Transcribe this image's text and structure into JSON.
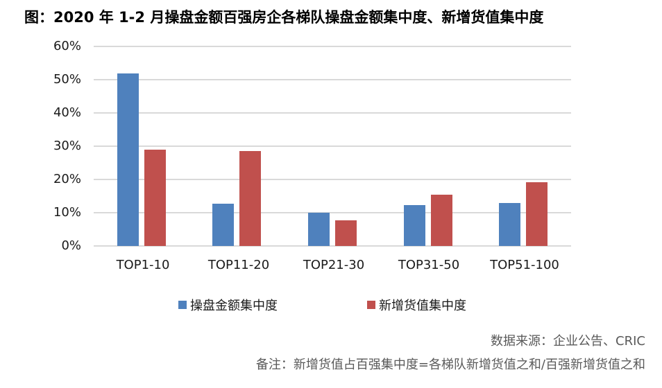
{
  "title": "图：2020 年 1-2 月操盘金额百强房企各梯队操盘金额集中度、新增货值集中度",
  "colors": {
    "series1": "#4f81bd",
    "series2": "#c0504d",
    "grid": "#d9d9d9"
  },
  "chart_data": {
    "type": "bar",
    "title": "图：2020 年 1-2 月操盘金额百强房企各梯队操盘金额集中度、新增货值集中度",
    "categories": [
      "TOP1-10",
      "TOP11-20",
      "TOP21-30",
      "TOP31-50",
      "TOP51-100"
    ],
    "series": [
      {
        "name": "操盘金额集中度",
        "color": "#4f81bd",
        "values": [
          51.9,
          12.7,
          10.0,
          12.3,
          12.9
        ]
      },
      {
        "name": "新增货值集中度",
        "color": "#c0504d",
        "values": [
          29.0,
          28.5,
          7.7,
          15.4,
          19.2
        ]
      }
    ],
    "xlabel": "",
    "ylabel": "",
    "ylim": [
      0,
      60
    ],
    "yticks": [
      "0%",
      "10%",
      "20%",
      "30%",
      "40%",
      "50%",
      "60%"
    ],
    "grid": true,
    "legend_position": "bottom",
    "unit": "%"
  },
  "axis": {
    "yticks": [
      "60%",
      "50%",
      "40%",
      "30%",
      "20%",
      "10%",
      "0%"
    ],
    "xticks": [
      "TOP1-10",
      "TOP11-20",
      "TOP21-30",
      "TOP31-50",
      "TOP51-100"
    ]
  },
  "legend": {
    "items": [
      {
        "label": "操盘金额集中度"
      },
      {
        "label": "新增货值集中度"
      }
    ]
  },
  "footer": {
    "source": "数据来源：企业公告、CRIC",
    "note": "备注：新增货值占百强集中度=各梯队新增货值之和/百强新增货值之和"
  }
}
